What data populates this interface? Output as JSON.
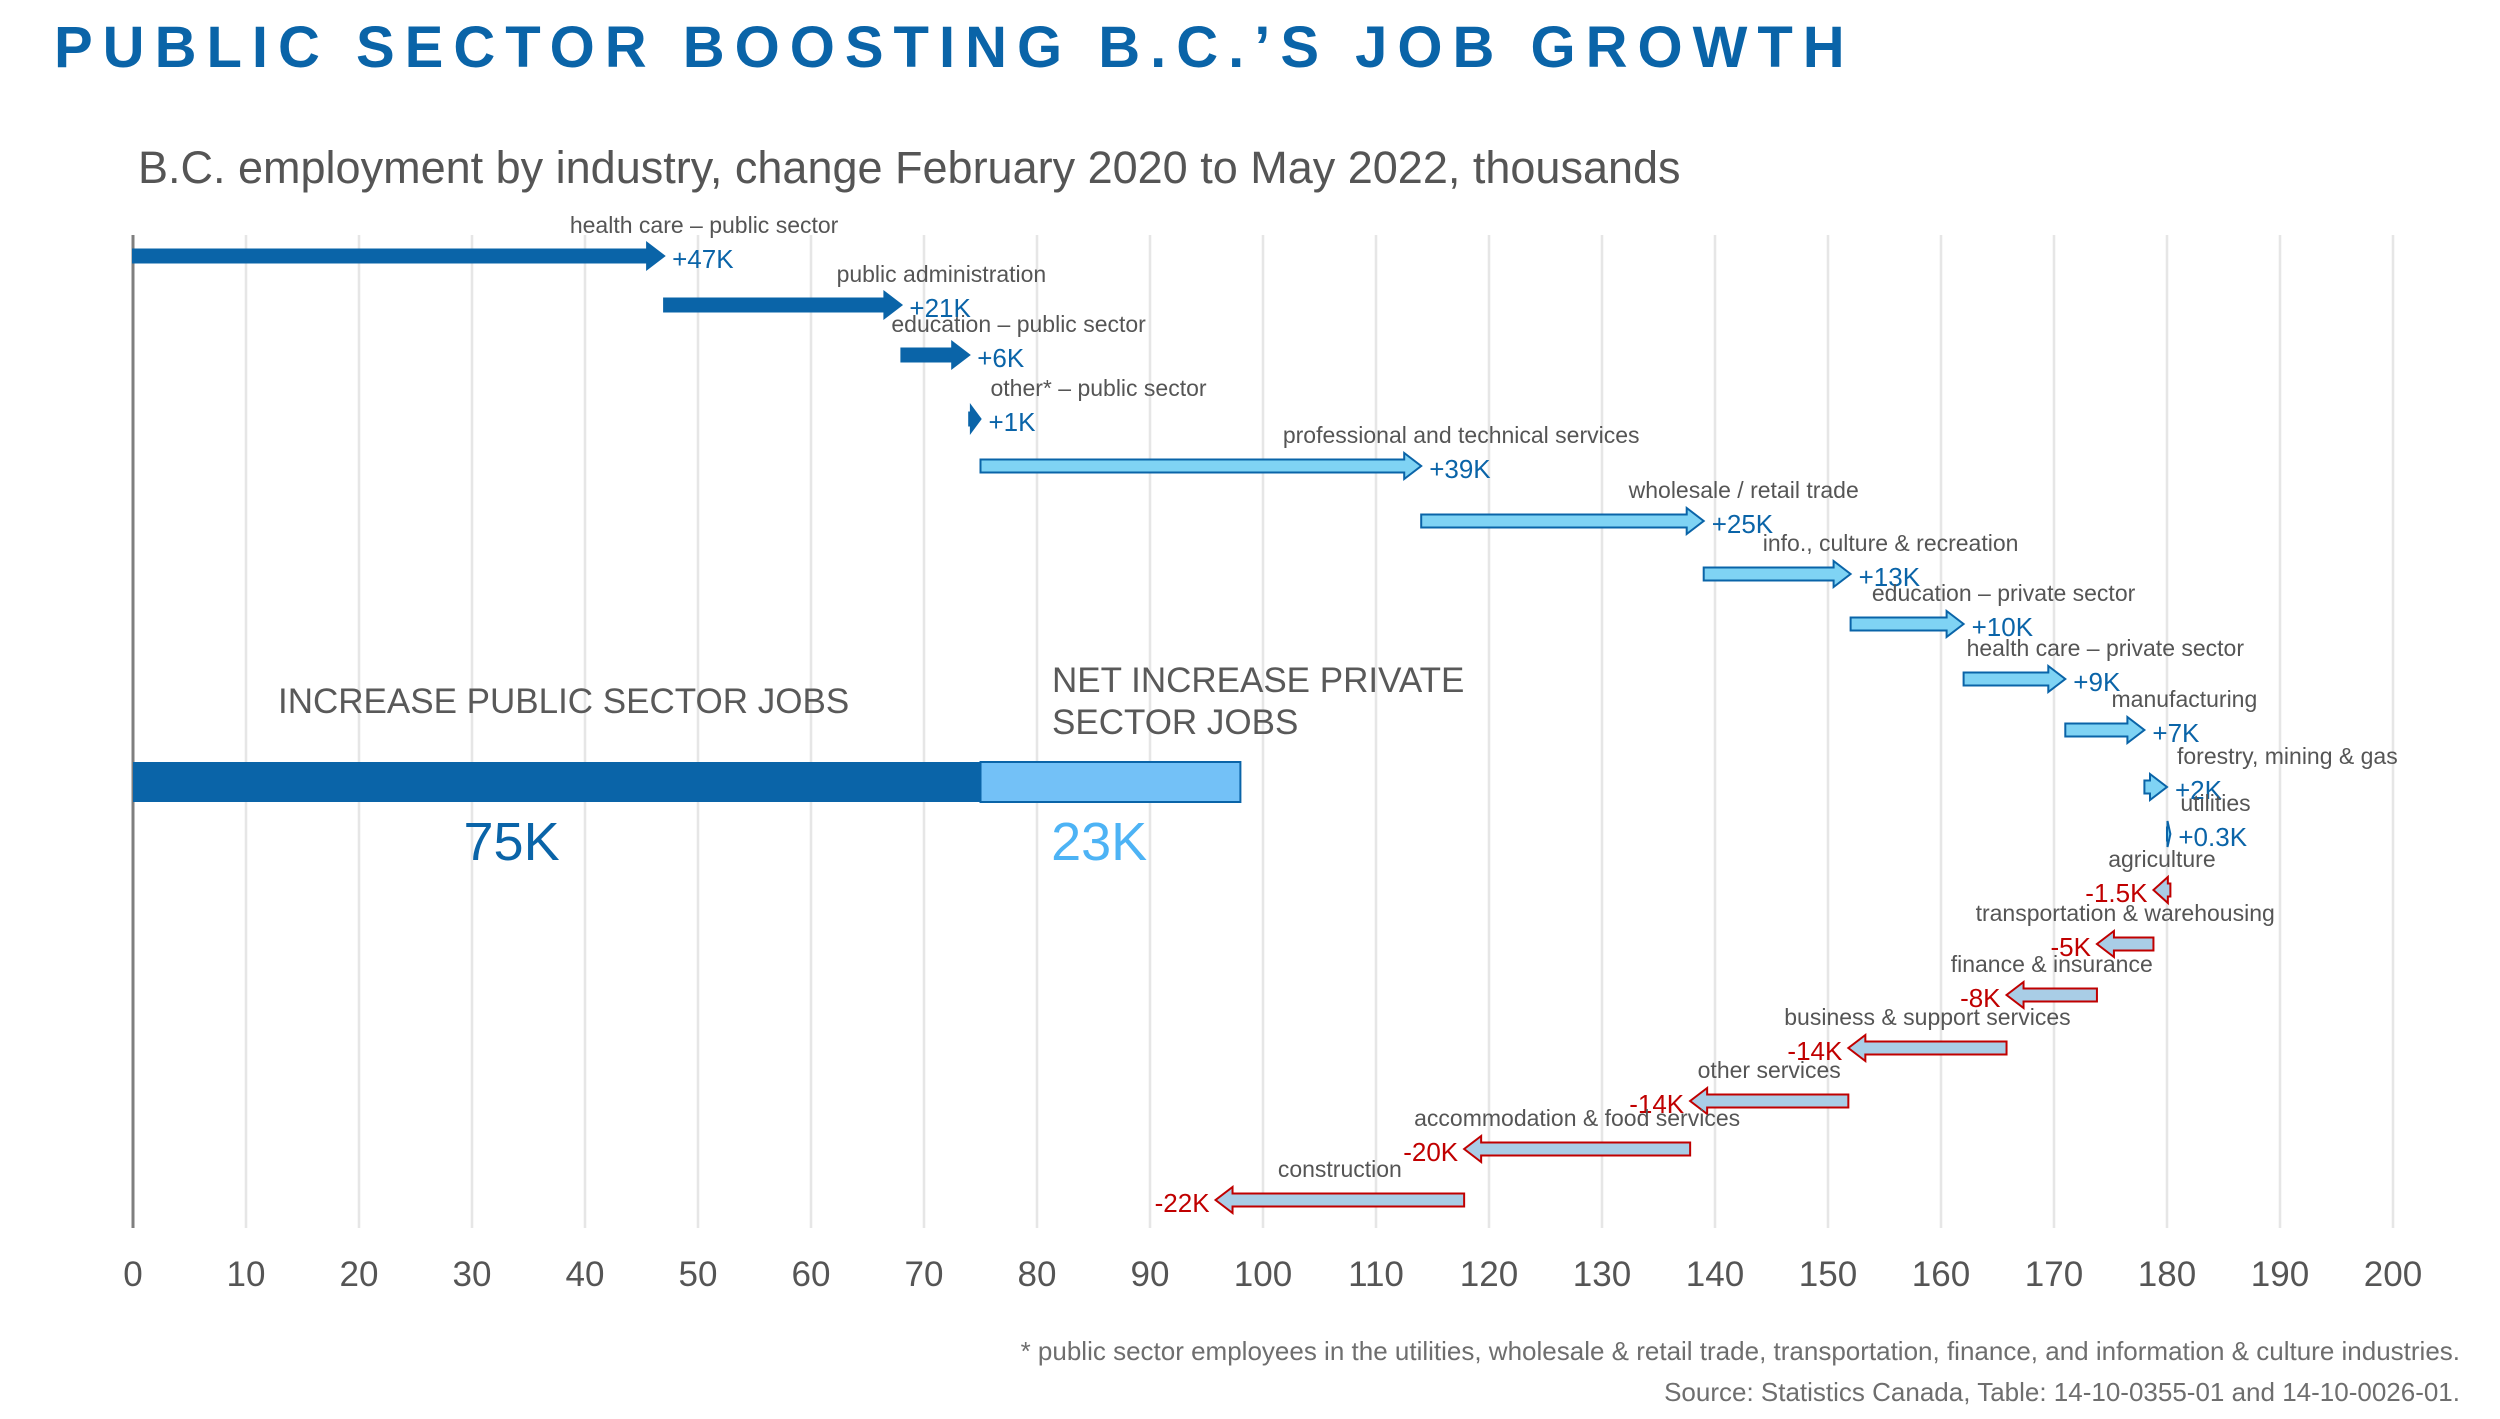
{
  "title": "PUBLIC SECTOR BOOSTING B.C.’S JOB GROWTH",
  "colors": {
    "public": "#0a64a8",
    "private_fill": "#7fd3f4",
    "private_total": "#73c1f7",
    "negative_fill": "#a9cde6",
    "negative_stroke": "#c00000",
    "positive_label": "#0a64a8",
    "negative_label": "#c00000",
    "gridline": "#e6e6e6",
    "axis": "#7f7f7f",
    "category_text": "#555555"
  },
  "chart_data": {
    "type": "waterfall",
    "title": "B.C. employment by industry, change February 2020 to May 2022, thousands",
    "xlim": [
      0,
      200
    ],
    "xticks": [
      0,
      10,
      20,
      30,
      40,
      50,
      60,
      70,
      80,
      90,
      100,
      110,
      120,
      130,
      140,
      150,
      160,
      170,
      180,
      190,
      200
    ],
    "grid": true,
    "industries": [
      {
        "name": "health care – public sector",
        "change": 47,
        "value_label": "+47K",
        "sector": "public"
      },
      {
        "name": "public administration",
        "change": 21,
        "value_label": "+21K",
        "sector": "public"
      },
      {
        "name": "education – public sector",
        "change": 6,
        "value_label": "+6K",
        "sector": "public"
      },
      {
        "name": "other* – public sector",
        "change": 1,
        "value_label": "+1K",
        "sector": "public"
      },
      {
        "name": "professional and technical services",
        "change": 39,
        "value_label": "+39K",
        "sector": "private"
      },
      {
        "name": "wholesale / retail trade",
        "change": 25,
        "value_label": "+25K",
        "sector": "private"
      },
      {
        "name": "info., culture & recreation",
        "change": 13,
        "value_label": "+13K",
        "sector": "private"
      },
      {
        "name": "education – private sector",
        "change": 10,
        "value_label": "+10K",
        "sector": "private"
      },
      {
        "name": "health care – private sector",
        "change": 9,
        "value_label": "+9K",
        "sector": "private"
      },
      {
        "name": "manufacturing",
        "change": 7,
        "value_label": "+7K",
        "sector": "private"
      },
      {
        "name": "forestry, mining & gas",
        "change": 2,
        "value_label": "+2K",
        "sector": "private"
      },
      {
        "name": "utilities",
        "change": 0.3,
        "value_label": "+0.3K",
        "sector": "private"
      },
      {
        "name": "agriculture",
        "change": -1.5,
        "value_label": "-1.5K",
        "sector": "private"
      },
      {
        "name": "transportation & warehousing",
        "change": -5,
        "value_label": "-5K",
        "sector": "private"
      },
      {
        "name": "finance & insurance",
        "change": -8,
        "value_label": "-8K",
        "sector": "private"
      },
      {
        "name": "business & support services",
        "change": -14,
        "value_label": "-14K",
        "sector": "private"
      },
      {
        "name": "other services",
        "change": -14,
        "value_label": "-14K",
        "sector": "private"
      },
      {
        "name": "accommodation & food services",
        "change": -20,
        "value_label": "-20K",
        "sector": "private"
      },
      {
        "name": "construction",
        "change": -22,
        "value_label": "-22K",
        "sector": "private"
      }
    ],
    "totals": {
      "public": {
        "label": "INCREASE PUBLIC SECTOR JOBS",
        "value": 75,
        "value_label": "75K"
      },
      "private": {
        "label_line1": "NET INCREASE PRIVATE",
        "label_line2": "SECTOR JOBS",
        "value": 23,
        "value_label": "23K"
      }
    }
  },
  "footnotes": {
    "note": "* public sector employees in the utilities, wholesale & retail trade, transportation, finance, and information & culture industries.",
    "source": "Source: Statistics Canada,  Table: 14-10-0355-01 and 14-10-0026-01."
  }
}
